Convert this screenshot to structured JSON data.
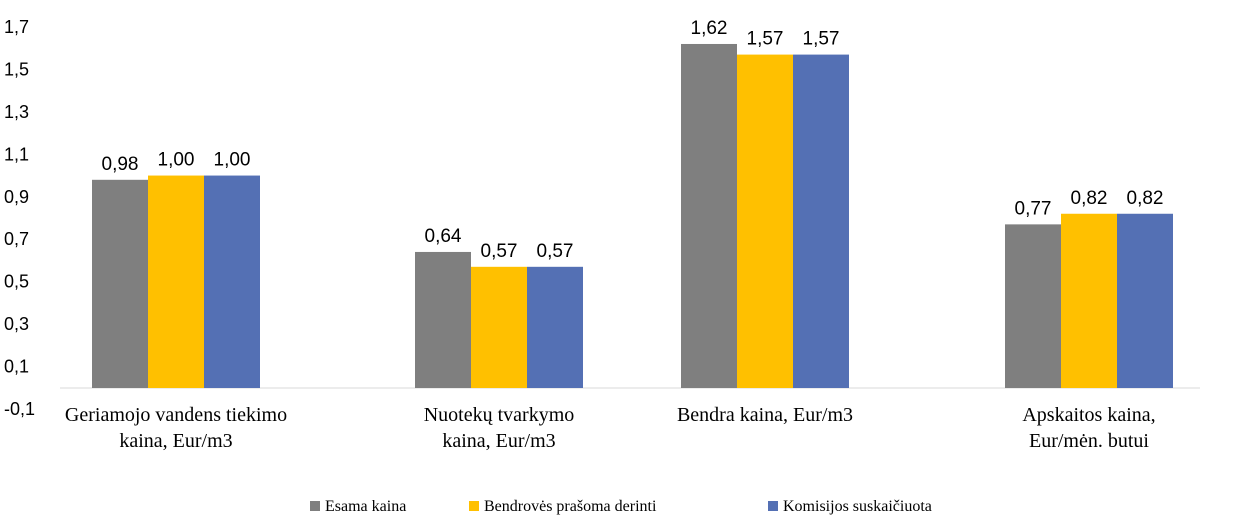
{
  "chart_data": {
    "type": "bar",
    "categories": [
      [
        "Geriamojo vandens tiekimo",
        "kaina, Eur/m3"
      ],
      [
        "Nuotekų tvarkymo",
        "kaina, Eur/m3"
      ],
      [
        "Bendra kaina, Eur/m3"
      ],
      [
        "Apskaitos kaina,",
        "Eur/mėn. butui"
      ]
    ],
    "series": [
      {
        "name": "Esama kaina",
        "color": "#7f7f7f",
        "values": [
          0.98,
          0.64,
          1.62,
          0.77
        ],
        "labels": [
          "0,98",
          "0,64",
          "1,62",
          "0,77"
        ]
      },
      {
        "name": "Bendrovės prašoma derinti",
        "color": "#ffc000",
        "values": [
          1.0,
          0.57,
          1.57,
          0.82
        ],
        "labels": [
          "1,00",
          "0,57",
          "1,57",
          "0,82"
        ]
      },
      {
        "name": "Komisijos suskaičiuota",
        "color": "#5470b4",
        "values": [
          1.0,
          0.57,
          1.57,
          0.82
        ],
        "labels": [
          "1,00",
          "0,57",
          "1,57",
          "0,82"
        ]
      }
    ],
    "ylim": [
      -0.1,
      1.7
    ],
    "yticks": [
      1.7,
      1.5,
      1.3,
      1.1,
      0.9,
      0.7,
      0.5,
      0.3,
      0.1,
      -0.1
    ],
    "ytick_labels": [
      "1,7",
      "1,5",
      "1,3",
      "1,1",
      "0,9",
      "0,7",
      "0,5",
      "0,3",
      "0,1",
      "-0,1"
    ],
    "grid": false,
    "legend_position": "bottom",
    "title": "",
    "xlabel": "",
    "ylabel": ""
  }
}
